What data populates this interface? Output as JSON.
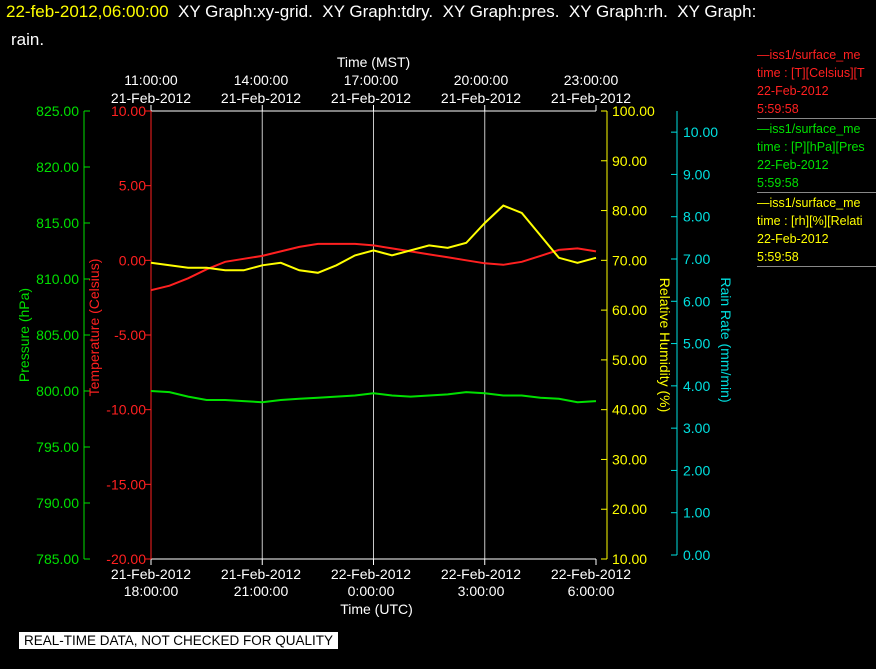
{
  "header": {
    "timestamp": "22-feb-2012,06:00:00",
    "title_rest": "  XY Graph:xy-grid.  XY Graph:tdry.  XY Graph:pres.  XY Graph:rh.  XY Graph:",
    "title_line2": "rain."
  },
  "legend": [
    {
      "line1": "—iss1/surface_me",
      "line2": "time : [T][Celsius][T",
      "line3": "22-Feb-2012",
      "line4": "5:59:58",
      "color": "#ff2020"
    },
    {
      "line1": "—iss1/surface_me",
      "line2": "time : [P][hPa][Pres",
      "line3": "22-Feb-2012",
      "line4": "5:59:58",
      "color": "#00e000"
    },
    {
      "line1": "—iss1/surface_me",
      "line2": "time : [rh][%][Relati",
      "line3": "22-Feb-2012",
      "line4": "5:59:58",
      "color": "#ffff00"
    }
  ],
  "footer_note": "REAL-TIME DATA, NOT CHECKED FOR QUALITY",
  "chart_data": {
    "type": "line",
    "grid": true,
    "top_axis": {
      "label": "Time (MST)",
      "ticks": [
        {
          "time": "11:00:00",
          "date": "21-Feb-2012"
        },
        {
          "time": "14:00:00",
          "date": "21-Feb-2012"
        },
        {
          "time": "17:00:00",
          "date": "21-Feb-2012"
        },
        {
          "time": "20:00:00",
          "date": "21-Feb-2012"
        },
        {
          "time": "23:00:00",
          "date": "21-Feb-2012"
        }
      ]
    },
    "bottom_axis": {
      "label": "Time (UTC)",
      "ticks": [
        {
          "date": "21-Feb-2012",
          "time": "18:00:00"
        },
        {
          "date": "21-Feb-2012",
          "time": "21:00:00"
        },
        {
          "date": "22-Feb-2012",
          "time": "0:00:00"
        },
        {
          "date": "22-Feb-2012",
          "time": "3:00:00"
        },
        {
          "date": "22-Feb-2012",
          "time": "6:00:00"
        }
      ]
    },
    "xlim_hours_utc": [
      0,
      12
    ],
    "axes": {
      "pressure": {
        "label": "Pressure (hPa)",
        "color": "#00e000",
        "ylim": [
          785,
          825
        ],
        "ticks": [
          "785.00",
          "790.00",
          "795.00",
          "800.00",
          "805.00",
          "810.00",
          "815.00",
          "820.00",
          "825.00"
        ]
      },
      "temperature": {
        "label": "Temperature (Celsius)",
        "color": "#ff2020",
        "ylim": [
          -20,
          10
        ],
        "ticks": [
          "-20.00",
          "-15.00",
          "-10.00",
          "-5.00",
          "0.00",
          "5.00",
          "10.00"
        ]
      },
      "rh": {
        "label": "Relative Humidity (%)",
        "color": "#ffff00",
        "ylim": [
          10,
          100
        ],
        "ticks": [
          "10.00",
          "20.00",
          "30.00",
          "40.00",
          "50.00",
          "60.00",
          "70.00",
          "80.00",
          "90.00",
          "100.00"
        ]
      },
      "rain": {
        "label": "Rain Rate (mm/min)",
        "color": "#00e0e0",
        "ylim": [
          0,
          10.5
        ],
        "ticks": [
          "0.00",
          "1.00",
          "2.00",
          "3.00",
          "4.00",
          "5.00",
          "6.00",
          "7.00",
          "8.00",
          "9.00",
          "10.00"
        ]
      }
    },
    "series": [
      {
        "axis": "temperature",
        "color": "#ff2020",
        "x": [
          0,
          0.5,
          1,
          1.5,
          2,
          2.5,
          3,
          3.5,
          4,
          4.5,
          5,
          5.5,
          6,
          6.5,
          7,
          7.5,
          8,
          8.5,
          9,
          9.5,
          10,
          10.5,
          11,
          11.5,
          12
        ],
        "y": [
          -2.0,
          -1.7,
          -1.2,
          -0.6,
          -0.1,
          0.1,
          0.3,
          0.6,
          0.9,
          1.1,
          1.1,
          1.1,
          1.0,
          0.8,
          0.6,
          0.4,
          0.2,
          0.0,
          -0.2,
          -0.3,
          -0.1,
          0.3,
          0.7,
          0.8,
          0.6
        ]
      },
      {
        "axis": "pressure",
        "color": "#00e000",
        "x": [
          0,
          0.5,
          1,
          1.5,
          2,
          2.5,
          3,
          3.5,
          4,
          4.5,
          5,
          5.5,
          6,
          6.5,
          7,
          7.5,
          8,
          8.5,
          9,
          9.5,
          10,
          10.5,
          11,
          11.5,
          12
        ],
        "y": [
          800.0,
          799.9,
          799.5,
          799.2,
          799.2,
          799.1,
          799.0,
          799.2,
          799.3,
          799.4,
          799.5,
          799.6,
          799.8,
          799.6,
          799.5,
          799.6,
          799.7,
          799.9,
          799.8,
          799.6,
          799.6,
          799.4,
          799.3,
          799.0,
          799.1
        ]
      },
      {
        "axis": "rh",
        "color": "#ffff00",
        "x": [
          0,
          0.5,
          1,
          1.5,
          2,
          2.5,
          3,
          3.5,
          4,
          4.5,
          5,
          5.5,
          6,
          6.5,
          7,
          7.5,
          8,
          8.5,
          9,
          9.5,
          10,
          10.5,
          11,
          11.5,
          12
        ],
        "y": [
          69.5,
          69.0,
          68.5,
          68.5,
          68.0,
          68.0,
          69.0,
          69.5,
          68.0,
          67.5,
          69.0,
          71.0,
          72.0,
          71.0,
          72.0,
          73.0,
          72.5,
          73.5,
          77.5,
          81.0,
          79.5,
          75.0,
          70.5,
          69.5,
          70.5
        ]
      }
    ]
  }
}
